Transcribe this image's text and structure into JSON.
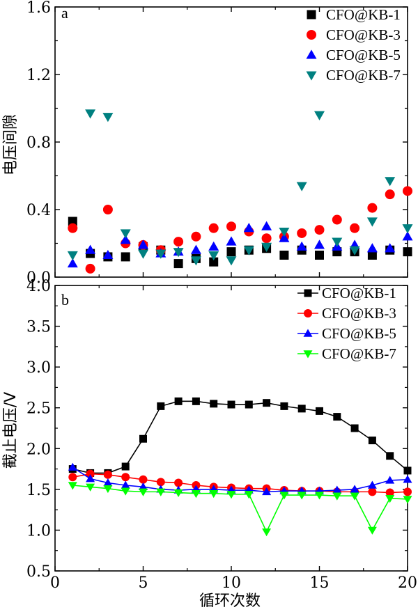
{
  "chart_data": [
    {
      "type": "scatter",
      "panel_label": "a",
      "ylabel": "电压间隙",
      "xlim": [
        0,
        20
      ],
      "ylim": [
        0,
        1.6
      ],
      "yticks": [
        "0.0",
        "0.4",
        "0.8",
        "1.2",
        "1.6"
      ],
      "yticks_values": [
        0,
        0.4,
        0.8,
        1.2,
        1.6
      ],
      "grid": false,
      "legend_position": "top-right",
      "series": [
        {
          "name": "CFO@KB-1",
          "marker": "square",
          "color": "#000000",
          "x": [
            1,
            2,
            3,
            4,
            5,
            6,
            7,
            8,
            9,
            10,
            11,
            12,
            13,
            14,
            15,
            16,
            17,
            18,
            19,
            20
          ],
          "y": [
            0.33,
            0.14,
            0.12,
            0.12,
            0.18,
            0.16,
            0.08,
            0.11,
            0.09,
            0.15,
            0.16,
            0.17,
            0.13,
            0.16,
            0.13,
            0.15,
            0.15,
            0.13,
            0.16,
            0.15
          ]
        },
        {
          "name": "CFO@KB-3",
          "marker": "circle",
          "color": "#ff0000",
          "x": [
            1,
            2,
            3,
            4,
            5,
            6,
            7,
            8,
            9,
            10,
            11,
            12,
            13,
            14,
            15,
            16,
            17,
            18,
            19,
            20
          ],
          "y": [
            0.29,
            0.05,
            0.4,
            0.2,
            0.19,
            0.16,
            0.21,
            0.24,
            0.29,
            0.3,
            0.27,
            0.23,
            0.24,
            0.26,
            0.28,
            0.34,
            0.29,
            0.41,
            0.49,
            0.51
          ]
        },
        {
          "name": "CFO@KB-5",
          "marker": "triangle-up",
          "color": "#0000ff",
          "x": [
            1,
            2,
            3,
            4,
            5,
            6,
            7,
            8,
            9,
            10,
            11,
            12,
            13,
            14,
            15,
            16,
            17,
            18,
            19,
            20
          ],
          "y": [
            0.08,
            0.16,
            0.13,
            0.22,
            0.19,
            0.14,
            0.15,
            0.16,
            0.18,
            0.21,
            0.29,
            0.3,
            0.23,
            0.18,
            0.19,
            0.18,
            0.19,
            0.17,
            0.17,
            0.24
          ]
        },
        {
          "name": "CFO@KB-7",
          "marker": "triangle-down",
          "color": "#008080",
          "x": [
            1,
            2,
            3,
            4,
            5,
            6,
            7,
            8,
            9,
            10,
            11,
            12,
            13,
            14,
            15,
            16,
            17,
            18,
            19,
            20
          ],
          "y": [
            0.13,
            0.97,
            0.95,
            0.26,
            0.14,
            0.14,
            0.15,
            0.1,
            0.13,
            0.1,
            0.16,
            0.18,
            0.27,
            0.54,
            0.96,
            0.21,
            0.16,
            0.33,
            0.57,
            0.29
          ]
        }
      ]
    },
    {
      "type": "line",
      "panel_label": "b",
      "xlabel": "循环次数",
      "ylabel": "截止电压/V",
      "xlim": [
        0,
        20
      ],
      "ylim": [
        0.5,
        4.0
      ],
      "xticks": [
        "0",
        "5",
        "10",
        "15",
        "20"
      ],
      "xticks_values": [
        0,
        5,
        10,
        15,
        20
      ],
      "yticks": [
        "0.5",
        "1.0",
        "1.5",
        "2.0",
        "2.5",
        "3.0",
        "3.5",
        "4.0"
      ],
      "yticks_values": [
        0.5,
        1.0,
        1.5,
        2.0,
        2.5,
        3.0,
        3.5,
        4.0
      ],
      "grid": false,
      "legend_position": "top-right",
      "series": [
        {
          "name": "CFO@KB-1",
          "marker": "square",
          "color": "#000000",
          "line_color": "#000000",
          "x": [
            1,
            2,
            3,
            4,
            5,
            6,
            7,
            8,
            9,
            10,
            11,
            12,
            13,
            14,
            15,
            16,
            17,
            18,
            19,
            20
          ],
          "y": [
            1.75,
            1.7,
            1.7,
            1.78,
            2.12,
            2.52,
            2.58,
            2.58,
            2.55,
            2.54,
            2.54,
            2.56,
            2.52,
            2.49,
            2.46,
            2.39,
            2.25,
            2.1,
            1.91,
            1.73
          ]
        },
        {
          "name": "CFO@KB-3",
          "marker": "circle",
          "color": "#ff0000",
          "line_color": "#ff0000",
          "x": [
            1,
            2,
            3,
            4,
            5,
            6,
            7,
            8,
            9,
            10,
            11,
            12,
            13,
            14,
            15,
            16,
            17,
            18,
            19,
            20
          ],
          "y": [
            1.65,
            1.69,
            1.68,
            1.65,
            1.62,
            1.59,
            1.58,
            1.55,
            1.53,
            1.52,
            1.51,
            1.51,
            1.49,
            1.48,
            1.48,
            1.47,
            1.47,
            1.47,
            1.46,
            1.47
          ]
        },
        {
          "name": "CFO@KB-5",
          "marker": "triangle-up",
          "color": "#0000ff",
          "line_color": "#0000ff",
          "x": [
            1,
            2,
            3,
            4,
            5,
            6,
            7,
            8,
            9,
            10,
            11,
            12,
            13,
            14,
            15,
            16,
            17,
            18,
            19,
            20
          ],
          "y": [
            1.77,
            1.63,
            1.58,
            1.55,
            1.53,
            1.5,
            1.49,
            1.5,
            1.5,
            1.49,
            1.49,
            1.47,
            1.48,
            1.48,
            1.48,
            1.49,
            1.5,
            1.55,
            1.61,
            1.62
          ]
        },
        {
          "name": "CFO@KB-7",
          "marker": "triangle-down",
          "color": "#00ff00",
          "line_color": "#00ff00",
          "x": [
            1,
            2,
            3,
            4,
            5,
            6,
            7,
            8,
            9,
            10,
            11,
            12,
            13,
            14,
            15,
            16,
            17,
            18,
            19,
            20
          ],
          "y": [
            1.55,
            1.53,
            1.51,
            1.48,
            1.47,
            1.47,
            1.46,
            1.45,
            1.45,
            1.44,
            1.44,
            0.98,
            1.43,
            1.43,
            1.43,
            1.42,
            1.42,
            1.0,
            1.39,
            1.38
          ]
        }
      ]
    }
  ]
}
